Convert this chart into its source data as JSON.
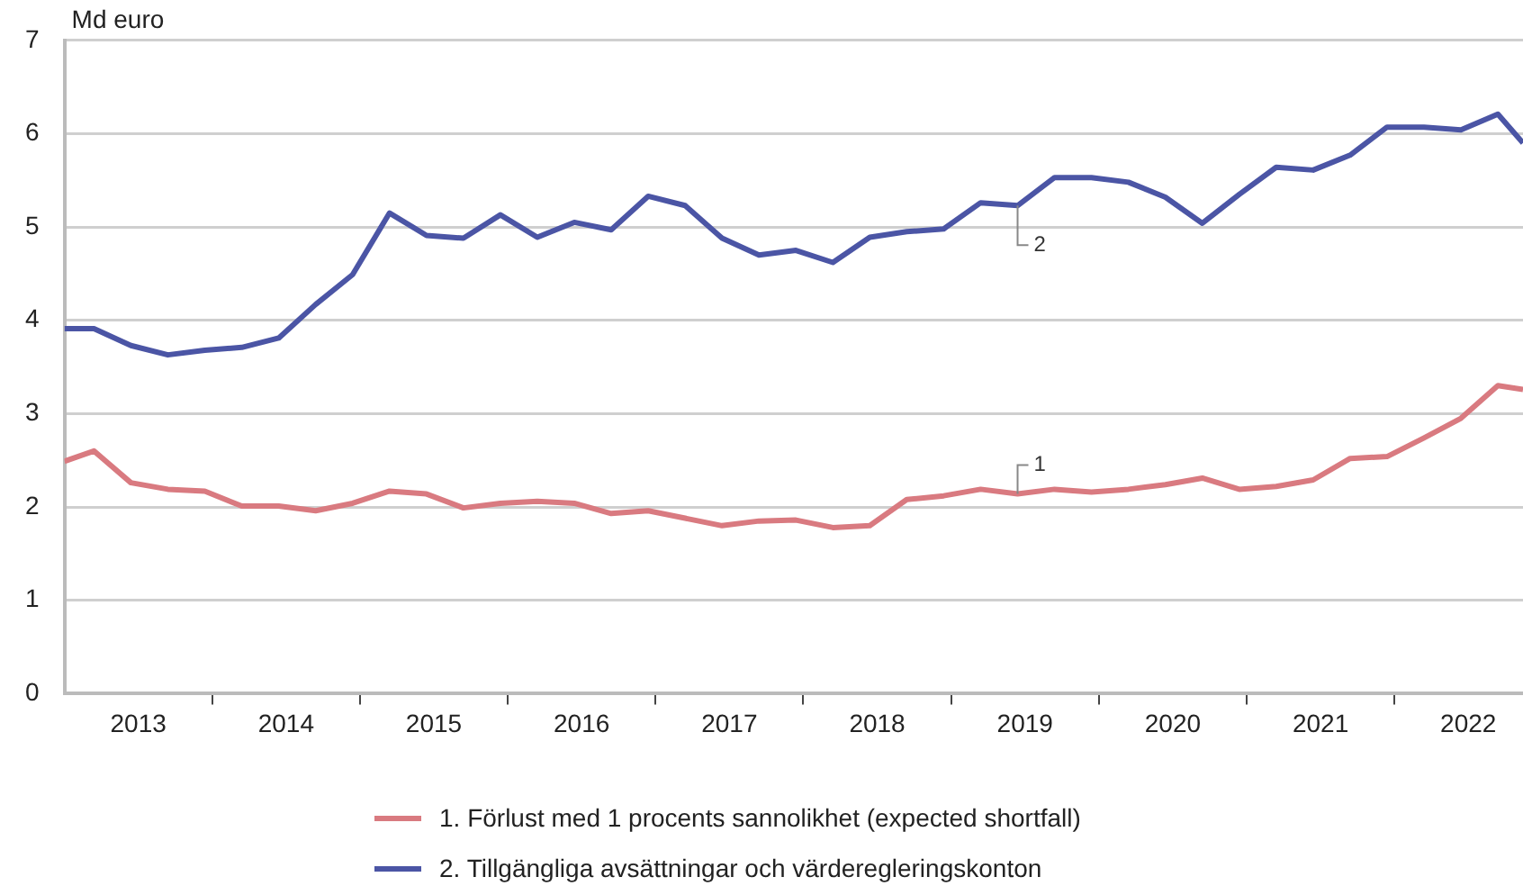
{
  "chart_data": {
    "type": "line",
    "ylabel": "Md euro",
    "x": [
      2013.0,
      2013.2,
      2013.45,
      2013.7,
      2013.95,
      2014.2,
      2014.45,
      2014.7,
      2014.95,
      2015.2,
      2015.45,
      2015.7,
      2015.95,
      2016.2,
      2016.45,
      2016.7,
      2016.95,
      2017.2,
      2017.45,
      2017.7,
      2017.95,
      2018.2,
      2018.45,
      2018.7,
      2018.95,
      2019.2,
      2019.45,
      2019.7,
      2019.95,
      2020.2,
      2020.45,
      2020.7,
      2020.95,
      2021.2,
      2021.45,
      2021.7,
      2021.95,
      2022.2,
      2022.45,
      2022.7,
      2022.87
    ],
    "series": [
      {
        "name": "1. Förlust med 1 procents sannolikhet (expected shortfall)",
        "color": "#d97a80",
        "values": [
          2.49,
          2.6,
          2.26,
          2.19,
          2.17,
          2.01,
          2.01,
          1.96,
          2.04,
          2.17,
          2.14,
          1.99,
          2.04,
          2.06,
          2.04,
          1.93,
          1.96,
          1.88,
          1.8,
          1.85,
          1.86,
          1.78,
          1.8,
          2.08,
          2.12,
          2.19,
          2.14,
          2.19,
          2.16,
          2.19,
          2.24,
          2.31,
          2.19,
          2.22,
          2.29,
          2.52,
          2.54,
          2.74,
          2.95,
          3.3,
          3.26
        ]
      },
      {
        "name": "2. Tillgängliga avsättningar och värderegleringskonton",
        "color": "#4b55a5",
        "values": [
          3.91,
          3.91,
          3.73,
          3.63,
          3.68,
          3.71,
          3.81,
          4.17,
          4.49,
          5.15,
          4.91,
          4.88,
          5.13,
          4.89,
          5.05,
          4.97,
          5.33,
          5.23,
          4.88,
          4.7,
          4.75,
          4.62,
          4.89,
          4.95,
          4.98,
          5.26,
          5.23,
          5.53,
          5.53,
          5.48,
          5.32,
          5.04,
          5.35,
          5.64,
          5.61,
          5.77,
          6.07,
          6.07,
          6.04,
          6.21,
          5.9
        ]
      }
    ],
    "xlim": [
      2013.0,
      2022.87
    ],
    "xticks": [
      {
        "value": 2013.5,
        "label": "2013"
      },
      {
        "value": 2014,
        "label": null
      },
      {
        "value": 2014.5,
        "label": "2014"
      },
      {
        "value": 2015,
        "label": null
      },
      {
        "value": 2015.5,
        "label": "2015"
      },
      {
        "value": 2016,
        "label": null
      },
      {
        "value": 2016.5,
        "label": "2016"
      },
      {
        "value": 2017,
        "label": null
      },
      {
        "value": 2017.5,
        "label": "2017"
      },
      {
        "value": 2018,
        "label": null
      },
      {
        "value": 2018.5,
        "label": "2018"
      },
      {
        "value": 2019,
        "label": null
      },
      {
        "value": 2019.5,
        "label": "2019"
      },
      {
        "value": 2020,
        "label": null
      },
      {
        "value": 2020.5,
        "label": "2020"
      },
      {
        "value": 2021,
        "label": null
      },
      {
        "value": 2021.5,
        "label": "2021"
      },
      {
        "value": 2022,
        "label": null
      },
      {
        "value": 2022.5,
        "label": "2022"
      }
    ],
    "ylim": [
      0,
      7
    ],
    "yticks": [
      0,
      1,
      2,
      3,
      4,
      5,
      6,
      7
    ],
    "grid": "y",
    "legend": "bottom",
    "marker": "none",
    "line_style": "solid",
    "annotations": [
      {
        "text": "1",
        "x": 2019.45,
        "y": 2.14
      },
      {
        "text": "2",
        "x": 2019.45,
        "y": 5.23
      }
    ]
  }
}
